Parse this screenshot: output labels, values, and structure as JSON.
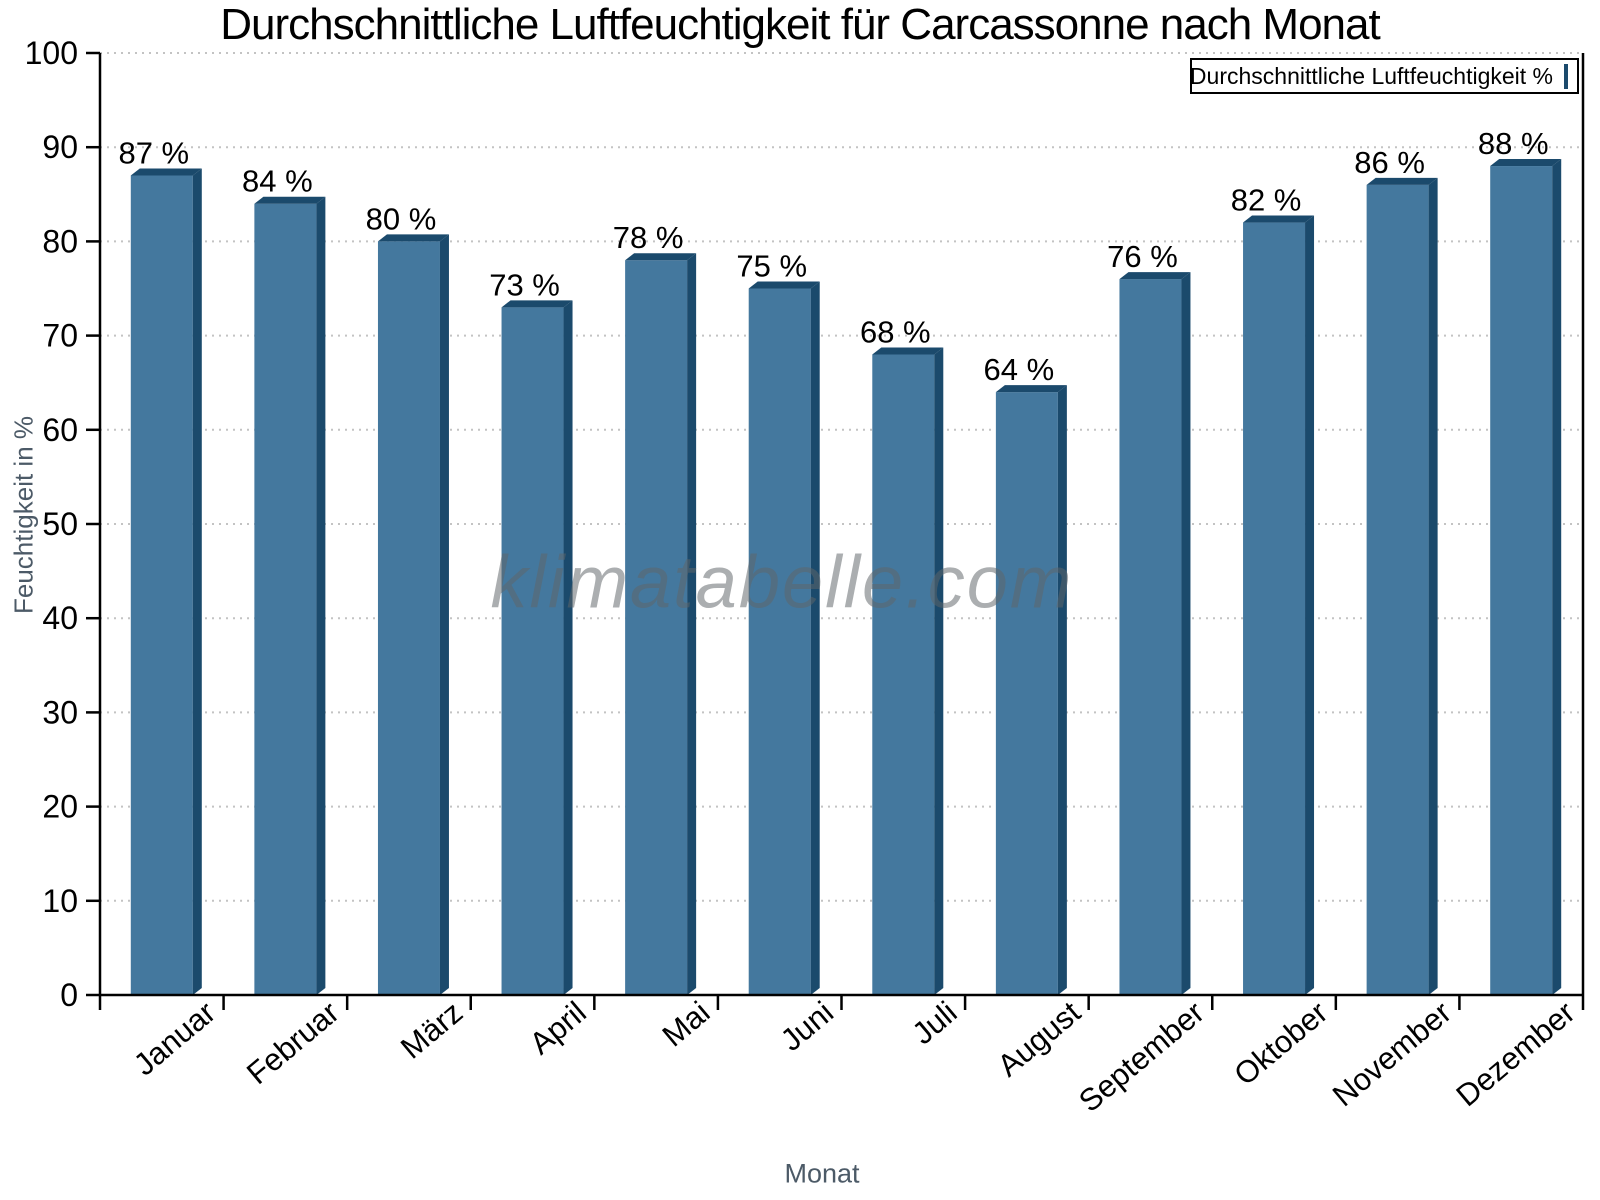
{
  "watermark": "klimatabelle.com",
  "chart_data": {
    "type": "bar",
    "title": "Durchschnittliche Luftfeuchtigkeit für Carcassonne nach Monat",
    "xlabel": "Monat",
    "ylabel": "Feuchtigkeit in %",
    "categories": [
      "Januar",
      "Februar",
      "März",
      "April",
      "Mai",
      "Juni",
      "Juli",
      "August",
      "September",
      "Oktober",
      "November",
      "Dezember"
    ],
    "values": [
      87,
      84,
      80,
      73,
      78,
      75,
      68,
      64,
      76,
      82,
      86,
      88
    ],
    "value_suffix": " %",
    "bar_labels": [
      "87 %",
      "84 %",
      "80 %",
      "73 %",
      "78 %",
      "75 %",
      "68 %",
      "64 %",
      "76 %",
      "82 %",
      "86 %",
      "88 %"
    ],
    "ylim": [
      0,
      100
    ],
    "yticks": [
      0,
      10,
      20,
      30,
      40,
      50,
      60,
      70,
      80,
      90,
      100
    ],
    "grid": "horizontal-dotted",
    "legend": {
      "label": "Durchschnittliche Luftfeuchtigkeit %",
      "position": "top-right"
    },
    "colors": {
      "bar_face": "#44789E",
      "bar_edge": "#1B4A6C",
      "grid": "#c3c3c3",
      "axis": "#000000",
      "tick_label": "#000000",
      "axis_title": "#4c5a67"
    }
  }
}
